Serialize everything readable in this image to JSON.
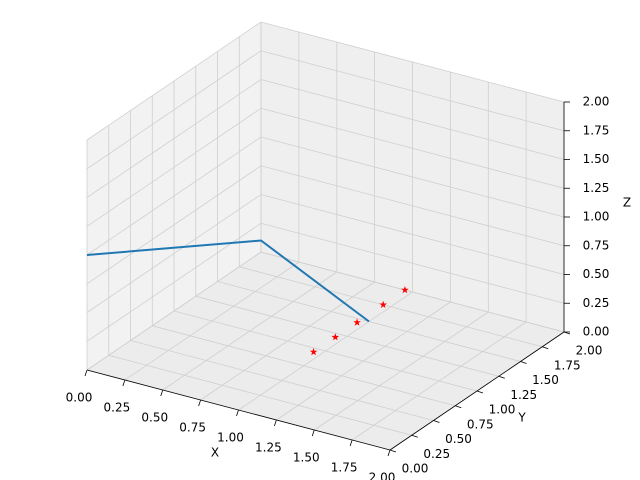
{
  "chart_data": {
    "type": "plot3d",
    "xlabel": "X",
    "ylabel": "Y",
    "zlabel": "Z",
    "xlim": [
      0,
      2
    ],
    "ylim": [
      0,
      2
    ],
    "zlim": [
      0,
      2
    ],
    "xticks": [
      {
        "value": 0,
        "label": "0.00"
      },
      {
        "value": 0.25,
        "label": "0.25"
      },
      {
        "value": 0.5,
        "label": "0.50"
      },
      {
        "value": 0.75,
        "label": "0.75"
      },
      {
        "value": 1,
        "label": "1.00"
      },
      {
        "value": 1.25,
        "label": "1.25"
      },
      {
        "value": 1.5,
        "label": "1.50"
      },
      {
        "value": 1.75,
        "label": "1.75"
      },
      {
        "value": 2,
        "label": "2.00"
      }
    ],
    "yticks": [
      {
        "value": 0,
        "label": "0.00"
      },
      {
        "value": 0.25,
        "label": "0.25"
      },
      {
        "value": 0.5,
        "label": "0.50"
      },
      {
        "value": 0.75,
        "label": "0.75"
      },
      {
        "value": 1,
        "label": "1.00"
      },
      {
        "value": 1.25,
        "label": "1.25"
      },
      {
        "value": 1.5,
        "label": "1.50"
      },
      {
        "value": 1.75,
        "label": "1.75"
      },
      {
        "value": 2,
        "label": "2.00"
      }
    ],
    "zticks": [
      {
        "value": 0,
        "label": "0.00"
      },
      {
        "value": 0.25,
        "label": "0.25"
      },
      {
        "value": 0.5,
        "label": "0.50"
      },
      {
        "value": 0.75,
        "label": "0.75"
      },
      {
        "value": 1,
        "label": "1.00"
      },
      {
        "value": 1.25,
        "label": "1.25"
      },
      {
        "value": 1.5,
        "label": "1.50"
      },
      {
        "value": 1.75,
        "label": "1.75"
      },
      {
        "value": 2,
        "label": "2.00"
      }
    ],
    "grid": true,
    "series": [
      {
        "kind": "line",
        "color": "#1f77b4",
        "x": [
          0,
          0,
          1
        ],
        "y": [
          0,
          2,
          1.5
        ],
        "z": [
          1,
          0.1,
          0
        ]
      },
      {
        "kind": "scatter",
        "marker": "star",
        "color": "#ff0000",
        "x": [
          0.95,
          0.95,
          0.95,
          0.95,
          0.95
        ],
        "y": [
          0.95,
          1.2,
          1.45,
          1.75,
          2.0
        ],
        "z": [
          0,
          0,
          0,
          0,
          0
        ]
      }
    ]
  }
}
